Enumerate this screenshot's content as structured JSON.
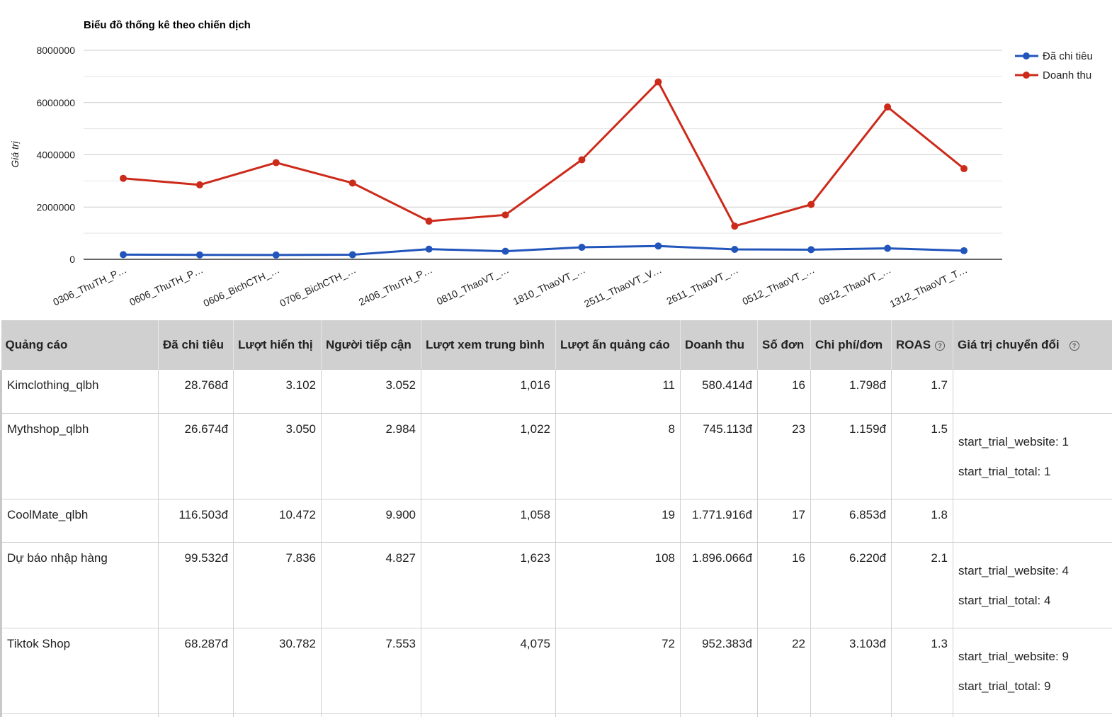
{
  "chart_data": {
    "type": "line",
    "title": "Biểu đồ thống kê theo chiến dịch",
    "xlabel": "",
    "ylabel": "Giá trị",
    "ylim": [
      0,
      8000000
    ],
    "yticks": [
      "0",
      "2000000",
      "4000000",
      "6000000",
      "8000000"
    ],
    "categories": [
      "0306_ThuTH_P…",
      "0606_ThuTH_P…",
      "0606_BichCTH_…",
      "0706_BichCTH_…",
      "2406_ThuTH_P…",
      "0810_ThaoVT_…",
      "1810_ThaoVT_…",
      "2511_ThaoVT_V…",
      "2611_ThaoVT_…",
      "0512_ThaoVT_…",
      "0912_ThaoVT_…",
      "1312_ThaoVT_T…"
    ],
    "series": [
      {
        "name": "Đã chi tiêu",
        "color": "#2255bb",
        "values": [
          180000,
          170000,
          165000,
          175000,
          390000,
          310000,
          460000,
          510000,
          380000,
          370000,
          420000,
          330000
        ]
      },
      {
        "name": "Doanh thu",
        "color": "#cc2a1a",
        "values": [
          3100000,
          2850000,
          3700000,
          2920000,
          1460000,
          1700000,
          3810000,
          6790000,
          1270000,
          2100000,
          5830000,
          3470000
        ]
      }
    ],
    "grid": true,
    "legend": "top-right"
  },
  "table": {
    "headers": [
      "Quảng cáo",
      "Đã chi tiêu",
      "Lượt hiển thị",
      "Người tiếp cận",
      "Lượt xem trung bình",
      "Lượt ấn quảng cáo",
      "Doanh thu",
      "Số đơn",
      "Chi phí/đơn",
      "ROAS",
      "Giá trị chuyển đổi"
    ],
    "help_icon": "help-circle-icon",
    "help_glyph": "?",
    "rows": [
      {
        "name": "Kimclothing_qlbh",
        "spent": "28.768đ",
        "impressions": "3.102",
        "reach": "3.052",
        "avg_views": "1,016",
        "clicks": "11",
        "revenue": "580.414đ",
        "orders": "16",
        "cost_per_order": "1.798đ",
        "roas": "1.7",
        "conversions": []
      },
      {
        "name": "Mythshop_qlbh",
        "spent": "26.674đ",
        "impressions": "3.050",
        "reach": "2.984",
        "avg_views": "1,022",
        "clicks": "8",
        "revenue": "745.113đ",
        "orders": "23",
        "cost_per_order": "1.159đ",
        "roas": "1.5",
        "conversions": [
          "start_trial_website: 1",
          "start_trial_total: 1"
        ]
      },
      {
        "name": "CoolMate_qlbh",
        "spent": "116.503đ",
        "impressions": "10.472",
        "reach": "9.900",
        "avg_views": "1,058",
        "clicks": "19",
        "revenue": "1.771.916đ",
        "orders": "17",
        "cost_per_order": "6.853đ",
        "roas": "1.8",
        "conversions": []
      },
      {
        "name": "Dự báo nhập hàng",
        "spent": "99.532đ",
        "impressions": "7.836",
        "reach": "4.827",
        "avg_views": "1,623",
        "clicks": "108",
        "revenue": "1.896.066đ",
        "orders": "16",
        "cost_per_order": "6.220đ",
        "roas": "2.1",
        "conversions": [
          "start_trial_website: 4",
          "start_trial_total: 4"
        ]
      },
      {
        "name": "Tiktok Shop",
        "spent": "68.287đ",
        "impressions": "30.782",
        "reach": "7.553",
        "avg_views": "4,075",
        "clicks": "72",
        "revenue": "952.383đ",
        "orders": "22",
        "cost_per_order": "3.103đ",
        "roas": "1.3",
        "conversions": [
          "start_trial_website: 9",
          "start_trial_total: 9"
        ]
      }
    ]
  }
}
